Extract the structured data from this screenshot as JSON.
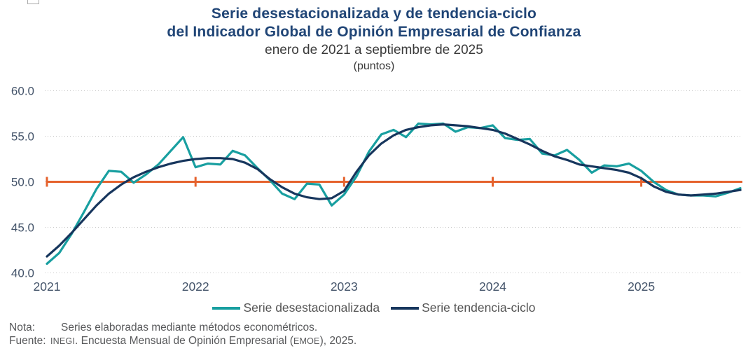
{
  "title": {
    "line1": "Serie desestacionalizada y de tendencia-ciclo",
    "line2": "del Indicador Global de Opinión Empresarial de Confianza",
    "subtitle": "enero de 2021 a septiembre de 2025",
    "units": "(puntos)"
  },
  "chart_data": {
    "type": "line",
    "title": "Serie desestacionalizada y de tendencia-ciclo del Indicador Global de Opinión Empresarial de Confianza",
    "subtitle": "enero de 2021 a septiembre de 2025",
    "ylabel": "puntos",
    "xlabel": "",
    "grid": "horizontal-dotted",
    "legend_position": "bottom-center",
    "x": [
      "2021-01",
      "2021-02",
      "2021-03",
      "2021-04",
      "2021-05",
      "2021-06",
      "2021-07",
      "2021-08",
      "2021-09",
      "2021-10",
      "2021-11",
      "2021-12",
      "2022-01",
      "2022-02",
      "2022-03",
      "2022-04",
      "2022-05",
      "2022-06",
      "2022-07",
      "2022-08",
      "2022-09",
      "2022-10",
      "2022-11",
      "2022-12",
      "2023-01",
      "2023-02",
      "2023-03",
      "2023-04",
      "2023-05",
      "2023-06",
      "2023-07",
      "2023-08",
      "2023-09",
      "2023-10",
      "2023-11",
      "2023-12",
      "2024-01",
      "2024-02",
      "2024-03",
      "2024-04",
      "2024-05",
      "2024-06",
      "2024-07",
      "2024-08",
      "2024-09",
      "2024-10",
      "2024-11",
      "2024-12",
      "2025-01",
      "2025-02",
      "2025-03",
      "2025-04",
      "2025-05",
      "2025-06",
      "2025-07",
      "2025-08",
      "2025-09"
    ],
    "series": [
      {
        "name": "Serie desestacionalizada",
        "color": "#189fa0",
        "values": [
          41.0,
          42.2,
          44.3,
          46.7,
          49.2,
          51.2,
          51.1,
          49.9,
          50.8,
          51.9,
          53.4,
          54.9,
          51.6,
          52.0,
          51.9,
          53.4,
          52.9,
          51.5,
          50.2,
          48.7,
          48.1,
          49.8,
          49.7,
          47.4,
          48.6,
          50.6,
          53.3,
          55.2,
          55.7,
          54.9,
          56.4,
          56.3,
          56.4,
          55.5,
          56.0,
          55.9,
          56.2,
          54.8,
          54.6,
          54.7,
          53.1,
          52.9,
          53.5,
          52.4,
          51.0,
          51.8,
          51.7,
          52.0,
          51.2,
          50.0,
          49.1,
          48.6,
          48.5,
          48.5,
          48.4,
          48.8,
          49.3
        ]
      },
      {
        "name": "Serie tendencia-ciclo",
        "color": "#17365d",
        "values": [
          41.8,
          43.0,
          44.4,
          45.9,
          47.4,
          48.7,
          49.7,
          50.5,
          51.1,
          51.6,
          52.0,
          52.3,
          52.5,
          52.6,
          52.6,
          52.5,
          52.1,
          51.4,
          50.3,
          49.4,
          48.7,
          48.3,
          48.1,
          48.2,
          49.0,
          51.1,
          52.9,
          54.2,
          55.1,
          55.7,
          56.0,
          56.2,
          56.3,
          56.2,
          56.1,
          55.9,
          55.7,
          55.3,
          54.7,
          54.1,
          53.4,
          52.8,
          52.4,
          51.9,
          51.7,
          51.5,
          51.3,
          51.0,
          50.4,
          49.5,
          48.9,
          48.6,
          48.5,
          48.6,
          48.7,
          48.9,
          49.1
        ]
      }
    ],
    "reference_line": {
      "value": 50.0,
      "color": "#e5622d",
      "tick_month_indices": [
        0,
        12,
        24,
        36,
        48
      ]
    },
    "y_axis": {
      "min": 40.0,
      "max": 60.0,
      "step": 5.0,
      "tick_labels": [
        "60.0",
        "55.0",
        "50.0",
        "45.0",
        "40.0"
      ],
      "tick_values": [
        60,
        55,
        50,
        45,
        40
      ]
    },
    "x_axis": {
      "tick_labels": [
        "2021",
        "2022",
        "2023",
        "2024",
        "2025"
      ],
      "tick_month_indices": [
        0,
        12,
        24,
        36,
        48
      ]
    }
  },
  "legend": {
    "item1": "Serie desestacionalizada",
    "item2": "Serie tendencia-ciclo"
  },
  "footer": {
    "nota_label": "Nota:",
    "nota_text": "Series elaboradas mediante métodos econométricos.",
    "fuente_label": "Fuente:",
    "fuente_inegi": "INEGI",
    "fuente_middle": ". Encuesta Mensual de Opinión Empresarial (",
    "fuente_emoe": "EMOE",
    "fuente_suffix": "), 2025."
  },
  "colors": {
    "title": "#204576",
    "series_desestacionalizada": "#189fa0",
    "series_tendencia_ciclo": "#17365d",
    "reference_line": "#e5622d",
    "axis_text": "#44546a",
    "gridline": "#c8c8c8",
    "notes_text": "#58595b"
  }
}
